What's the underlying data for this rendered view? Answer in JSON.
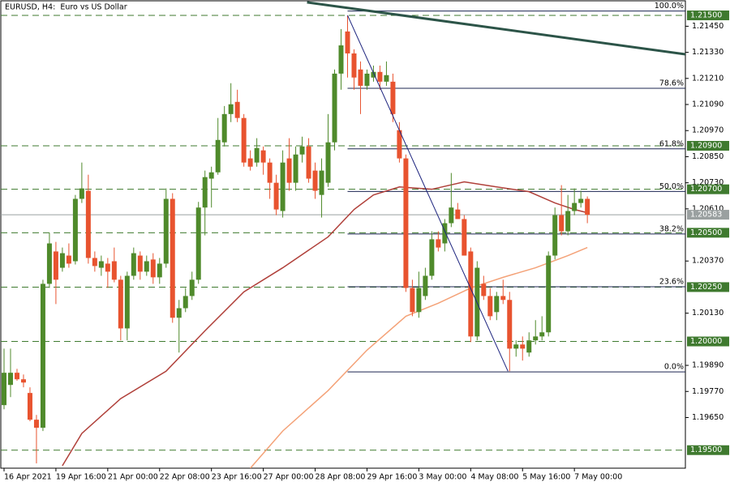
{
  "chart_data": {
    "type": "candlestick",
    "title": "EURUSD, H4:  Euro vs US Dollar",
    "categories": [
      "16 Apr 2021",
      null,
      null,
      null,
      null,
      null,
      null,
      null,
      "19 Apr 16:00",
      null,
      null,
      null,
      null,
      null,
      null,
      null,
      "21 Apr 00:00",
      null,
      null,
      null,
      null,
      null,
      null,
      null,
      "22 Apr 08:00",
      null,
      null,
      null,
      null,
      null,
      null,
      null,
      "23 Apr 16:00",
      null,
      null,
      null,
      null,
      null,
      null,
      null,
      "27 Apr 00:00",
      null,
      null,
      null,
      null,
      null,
      null,
      null,
      "28 Apr 08:00",
      null,
      null,
      null,
      null,
      null,
      null,
      null,
      "29 Apr 16:00",
      null,
      null,
      null,
      null,
      null,
      null,
      null,
      "3 May 00:00",
      null,
      null,
      null,
      null,
      null,
      null,
      null,
      "4 May 08:00",
      null,
      null,
      null,
      null,
      null,
      null,
      null,
      "5 May 16:00",
      null,
      null,
      null,
      null,
      null,
      null,
      null,
      "7 May 00:00",
      null,
      null
    ],
    "open": [
      1.19707,
      1.198,
      1.19856,
      1.19826,
      1.19763,
      1.1964,
      1.19603,
      1.20265,
      1.20414,
      1.20339,
      1.20395,
      1.20369,
      1.20656,
      1.20693,
      1.20384,
      1.20339,
      1.20358,
      1.20369,
      1.20284,
      1.2006,
      1.20302,
      1.20395,
      1.20321,
      1.20377,
      1.20295,
      1.20358,
      1.20656,
      1.20109,
      1.20153,
      1.20209,
      1.20284,
      1.20616,
      1.20749,
      1.20778,
      1.20916,
      1.21046,
      1.21102,
      1.21028,
      1.20842,
      1.20823,
      1.20879,
      1.20823,
      1.2073,
      1.206,
      1.20842,
      1.2073,
      1.2086,
      1.20897,
      1.20786,
      1.20674,
      1.2073,
      1.20916,
      1.21232,
      1.21426,
      1.21325,
      1.21251,
      1.21176,
      1.21214,
      1.2124,
      1.21195,
      1.21195,
      1.20972,
      1.20842,
      1.20246,
      1.20135,
      1.20209,
      1.20302,
      1.2047,
      1.20451,
      1.20544,
      1.20607,
      1.20563,
      1.20414,
      1.20023,
      1.20265,
      1.20209,
      1.20135,
      1.20209,
      1.20191,
      1.19967,
      1.19986,
      1.19949,
      1.20005,
      1.20023,
      1.20042,
      1.20395,
      1.20581,
      1.20507,
      1.206,
      1.20637,
      1.20656
    ],
    "high": [
      1.19967,
      1.19967,
      1.19874,
      1.19848,
      1.19789,
      1.19662,
      1.20284,
      1.205,
      1.20458,
      1.20432,
      1.20451,
      1.20674,
      1.20823,
      1.20767,
      1.20414,
      1.20395,
      1.20384,
      1.20432,
      1.20302,
      1.20321,
      1.20432,
      1.20414,
      1.20395,
      1.20406,
      1.20384,
      1.20704,
      1.20682,
      1.20191,
      1.20246,
      1.20321,
      1.20642,
      1.20786,
      1.20804,
      1.21028,
      1.21083,
      1.21188,
      1.21158,
      1.21046,
      1.20879,
      1.20935,
      1.20897,
      1.20842,
      1.20767,
      1.20879,
      1.20935,
      1.20897,
      1.20942,
      1.20935,
      1.20823,
      1.20842,
      1.21046,
      1.21251,
      1.21437,
      1.215,
      1.21344,
      1.21288,
      1.21251,
      1.21269,
      1.21269,
      1.21288,
      1.21232,
      1.21009,
      1.2086,
      1.20284,
      1.20321,
      1.20339,
      1.20507,
      1.20507,
      1.20563,
      1.20775,
      1.20637,
      1.20581,
      1.20432,
      1.20369,
      1.20302,
      1.20246,
      1.20228,
      1.20284,
      1.20228,
      1.20005,
      1.20023,
      1.20042,
      1.20098,
      1.20116,
      1.20414,
      1.20616,
      1.20719,
      1.20674,
      1.20704,
      1.20693,
      1.20667
    ],
    "low": [
      1.19688,
      1.19744,
      1.19819,
      1.19789,
      1.19633,
      1.19439,
      1.19588,
      1.20246,
      1.20172,
      1.20321,
      1.20339,
      1.20354,
      1.20637,
      1.20358,
      1.20321,
      1.20302,
      1.20246,
      1.20272,
      1.20005,
      1.20005,
      1.20284,
      1.20284,
      1.20302,
      1.20265,
      1.20265,
      1.20339,
      1.20086,
      1.19949,
      1.20135,
      1.20191,
      1.20265,
      1.20488,
      1.20616,
      1.20767,
      1.20897,
      1.21009,
      1.21009,
      1.20804,
      1.20786,
      1.20804,
      1.20767,
      1.20656,
      1.20581,
      1.2057,
      1.20693,
      1.20693,
      1.20823,
      1.2073,
      1.20656,
      1.2057,
      1.20711,
      1.20879,
      1.21158,
      1.21214,
      1.21158,
      1.21046,
      1.21158,
      1.21195,
      1.21158,
      1.21176,
      1.21009,
      1.20823,
      1.20228,
      1.20116,
      1.20109,
      1.20191,
      1.20284,
      1.20414,
      1.20414,
      1.20526,
      1.20563,
      1.20395,
      1.19997,
      1.20005,
      1.20191,
      1.20098,
      1.20098,
      1.20172,
      1.19863,
      1.1993,
      1.19912,
      1.1993,
      1.19986,
      1.20005,
      1.20023,
      1.20377,
      1.20488,
      1.20488,
      1.20581,
      1.20616,
      1.20544
    ],
    "close": [
      1.19856,
      1.19856,
      1.19826,
      1.19811,
      1.1964,
      1.19603,
      1.20265,
      1.20451,
      1.20284,
      1.20406,
      1.20358,
      1.20656,
      1.20704,
      1.20384,
      1.20347,
      1.20369,
      1.20321,
      1.20284,
      1.2006,
      1.20302,
      1.20406,
      1.20321,
      1.20369,
      1.20295,
      1.20358,
      1.20656,
      1.20109,
      1.20153,
      1.20209,
      1.20284,
      1.20616,
      1.20756,
      1.20778,
      1.20927,
      1.21046,
      1.21091,
      1.21028,
      1.20823,
      1.20804,
      1.2089,
      1.20823,
      1.2073,
      1.20607,
      1.20823,
      1.2073,
      1.2086,
      1.20897,
      1.20749,
      1.20693,
      1.20786,
      1.20916,
      1.21232,
      1.21362,
      1.21325,
      1.21214,
      1.21176,
      1.21232,
      1.2124,
      1.21195,
      1.21225,
      1.21046,
      1.20842,
      1.20246,
      1.20135,
      1.20246,
      1.20302,
      1.2047,
      1.20432,
      1.20544,
      1.20616,
      1.20563,
      1.20395,
      1.20023,
      1.20339,
      1.20209,
      1.20116,
      1.20209,
      1.20191,
      1.19967,
      1.19986,
      1.19967,
      1.20005,
      1.20023,
      1.20042,
      1.20395,
      1.20581,
      1.20507,
      1.206,
      1.20637,
      1.20656,
      1.20583
    ],
    "up_color": "#4f8a2b",
    "down_color": "#e8532f",
    "xlim": [
      -0.5,
      105.125
    ],
    "ylim": [
      1.19417,
      1.21567
    ],
    "yticks": [
      {
        "value": 1.2145,
        "label": "1.21450"
      },
      {
        "value": 1.2133,
        "label": "1.21330"
      },
      {
        "value": 1.2121,
        "label": "1.21210"
      },
      {
        "value": 1.2109,
        "label": "1.21090"
      },
      {
        "value": 1.2097,
        "label": "1.20970"
      },
      {
        "value": 1.2085,
        "label": "1.20850"
      },
      {
        "value": 1.2073,
        "label": "1.20730"
      },
      {
        "value": 1.2061,
        "label": "1.20610"
      },
      {
        "value": 1.2037,
        "label": "1.20370"
      },
      {
        "value": 1.2013,
        "label": "1.20130"
      },
      {
        "value": 1.1989,
        "label": "1.19890"
      },
      {
        "value": 1.1977,
        "label": "1.19770"
      },
      {
        "value": 1.1965,
        "label": "1.19650"
      }
    ],
    "levels": [
      {
        "value": 1.215,
        "label": "1.21500"
      },
      {
        "value": 1.209,
        "label": "1.20900"
      },
      {
        "value": 1.207,
        "label": "1.20700"
      },
      {
        "value": 1.205,
        "label": "1.20500"
      },
      {
        "value": 1.2025,
        "label": "1.20250"
      },
      {
        "value": 1.2,
        "label": "1.20000"
      },
      {
        "value": 1.195,
        "label": "1.19500"
      }
    ],
    "level_color": "#3f7a2f",
    "current_price": {
      "value": 1.20583,
      "label": "1.20583"
    },
    "current_color": "#9aa0a0",
    "fibonacci": {
      "high": 1.2152,
      "low": 1.1986,
      "start": 53,
      "color": "#1c2452",
      "levels": [
        {
          "value": 100,
          "label": "100.0%"
        },
        {
          "value": 78.6,
          "label": "78.6%"
        },
        {
          "value": 61.8,
          "label": "61.8%"
        },
        {
          "value": 50,
          "label": "50.0%"
        },
        {
          "value": 38.2,
          "label": "38.2%"
        },
        {
          "value": 23.6,
          "label": "23.6%"
        },
        {
          "value": 0,
          "label": "0.0%"
        }
      ]
    },
    "moving_averages": [
      {
        "color": "#b0403a",
        "x": [
          9,
          12,
          18,
          25,
          31,
          37,
          43,
          50,
          54,
          57,
          61,
          66,
          71,
          76,
          81,
          85,
          88,
          90
        ],
        "values": [
          1.19428,
          1.19577,
          1.19737,
          1.19863,
          1.20049,
          1.20228,
          1.20339,
          1.20481,
          1.20607,
          1.20674,
          1.20711,
          1.207,
          1.20734,
          1.20711,
          1.20689,
          1.20637,
          1.20607,
          1.20592
        ]
      },
      {
        "color": "#f4a278",
        "x": [
          38,
          43,
          50,
          56,
          62,
          67,
          72,
          77,
          82,
          87,
          90
        ],
        "values": [
          1.19417,
          1.19588,
          1.19774,
          1.1996,
          1.20116,
          1.20176,
          1.20246,
          1.20295,
          1.20339,
          1.20395,
          1.20432
        ]
      }
    ],
    "trendlines": [
      {
        "color": "#2c5448",
        "width": 3,
        "x": [
          46.75,
          105.125
        ],
        "values": [
          1.2156,
          1.21321
        ]
      },
      {
        "color": "#1c237e",
        "width": 1,
        "x": [
          53,
          77.75
        ],
        "values": [
          1.215,
          1.19863
        ]
      }
    ]
  }
}
